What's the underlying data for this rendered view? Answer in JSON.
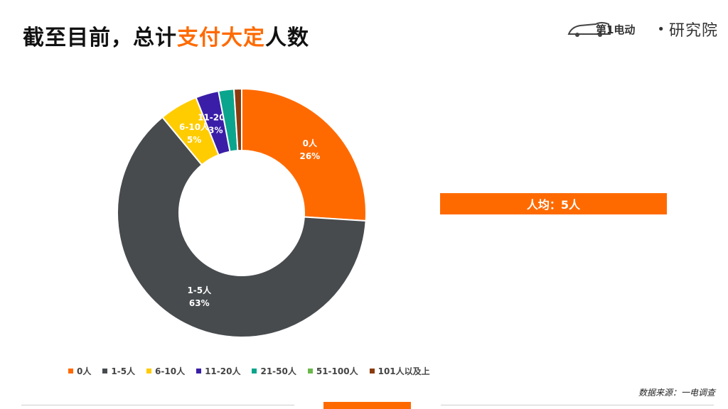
{
  "header": {
    "title_prefix": "截至目前，总计",
    "title_highlight": "支付大定",
    "title_suffix": "人数",
    "logo_brand": "第1电动",
    "logo_separator": "•",
    "logo_institute": "研究院"
  },
  "summary": {
    "average_label": "人均：5人"
  },
  "footer": {
    "source": "数据来源：一电调查"
  },
  "colors": {
    "accent": "#ff6a00"
  },
  "chart_data": {
    "type": "pie",
    "variant": "donut",
    "categories": [
      "0人",
      "1-5人",
      "6-10人",
      "11-20人",
      "21-50人",
      "51-100人",
      "101人以及上"
    ],
    "values": [
      26,
      63,
      5,
      3,
      2,
      0,
      1
    ],
    "value_labels": [
      "26%",
      "63%",
      "5%",
      "3%",
      "",
      "",
      ""
    ],
    "labeled": [
      true,
      true,
      true,
      true,
      false,
      false,
      false
    ],
    "colors": [
      "#ff6a00",
      "#474b4e",
      "#ffcc00",
      "#3a1ea8",
      "#0aa58c",
      "#6bb84a",
      "#8b3a0e"
    ],
    "legend_position": "bottom",
    "unit": "%"
  }
}
